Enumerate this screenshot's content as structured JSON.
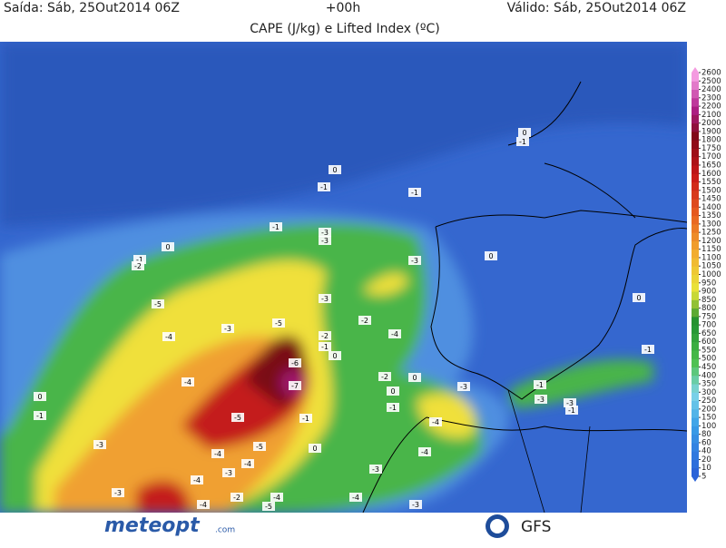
{
  "header": {
    "issued": "Saída: Sáb, 25Out2014 06Z",
    "lead": "+00h",
    "valid": "Válido: Sáb, 25Out2014 06Z",
    "title": "CAPE (J/kg) e Lifted Index (ºC)"
  },
  "colorbar_ticks": [
    5,
    10,
    20,
    40,
    60,
    80,
    100,
    150,
    200,
    250,
    300,
    350,
    400,
    450,
    500,
    550,
    600,
    650,
    700,
    750,
    800,
    850,
    900,
    950,
    1000,
    1050,
    1100,
    1150,
    1200,
    1250,
    1300,
    1350,
    1400,
    1450,
    1500,
    1550,
    1600,
    1650,
    1700,
    1750,
    1800,
    1900,
    2000,
    2100,
    2200,
    2300,
    2400,
    2500,
    2600
  ],
  "lifted_index_labels": [
    0,
    -1,
    0,
    -1,
    -1,
    0,
    -1,
    -3,
    -3,
    -1,
    -2,
    0,
    -3,
    -3,
    -5,
    0,
    -2,
    -5,
    -3,
    -4,
    -2,
    -4,
    -1,
    -1,
    0,
    -6,
    -7,
    -4,
    -2,
    0,
    -1,
    0,
    -3,
    -3,
    -3,
    -1,
    -1,
    0,
    -1,
    -1,
    -5,
    -4,
    0,
    -3,
    -5,
    -4,
    -4,
    -4,
    -3,
    -3,
    -4,
    -3,
    -2,
    -4,
    -4,
    -5,
    -3,
    -4
  ],
  "footer": {
    "logo": "meteopt",
    "logo_suffix": ".com",
    "model": "GFS"
  }
}
